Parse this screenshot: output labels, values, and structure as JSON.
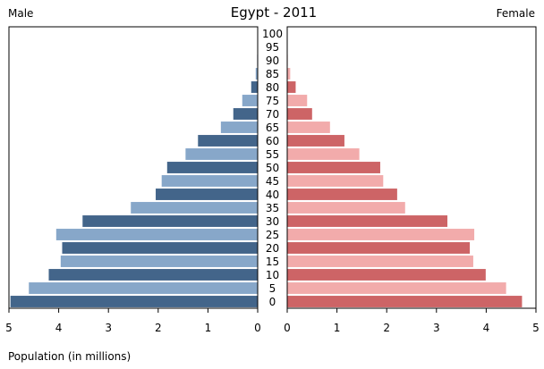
{
  "chart_data": {
    "type": "bar",
    "title": "Egypt - 2011",
    "left_label": "Male",
    "right_label": "Female",
    "xlabel": "Population (in millions)",
    "age_groups": [
      "0",
      "5",
      "10",
      "15",
      "20",
      "25",
      "30",
      "35",
      "40",
      "45",
      "50",
      "55",
      "60",
      "65",
      "70",
      "75",
      "80",
      "85",
      "90",
      "95",
      "100"
    ],
    "male_ticks": [
      "5",
      "4",
      "3",
      "2",
      "1",
      "0"
    ],
    "female_ticks": [
      "0",
      "1",
      "2",
      "3",
      "4",
      "5"
    ],
    "xlim": [
      0,
      5
    ],
    "series": [
      {
        "name": "Male",
        "values": [
          4.97,
          4.6,
          4.2,
          3.96,
          3.93,
          4.05,
          3.52,
          2.55,
          2.05,
          1.93,
          1.82,
          1.45,
          1.2,
          0.74,
          0.49,
          0.31,
          0.13,
          0.04,
          0.01,
          0.0,
          0.0
        ]
      },
      {
        "name": "Female",
        "values": [
          4.72,
          4.4,
          3.99,
          3.74,
          3.67,
          3.76,
          3.22,
          2.37,
          2.21,
          1.93,
          1.87,
          1.45,
          1.15,
          0.86,
          0.5,
          0.4,
          0.17,
          0.06,
          0.01,
          0.0,
          0.0
        ]
      }
    ],
    "colors": {
      "male_dark": "#43658a",
      "male_light": "#87a7c9",
      "female_dark": "#cd6466",
      "female_light": "#f2abab",
      "axis": "#000000"
    }
  }
}
